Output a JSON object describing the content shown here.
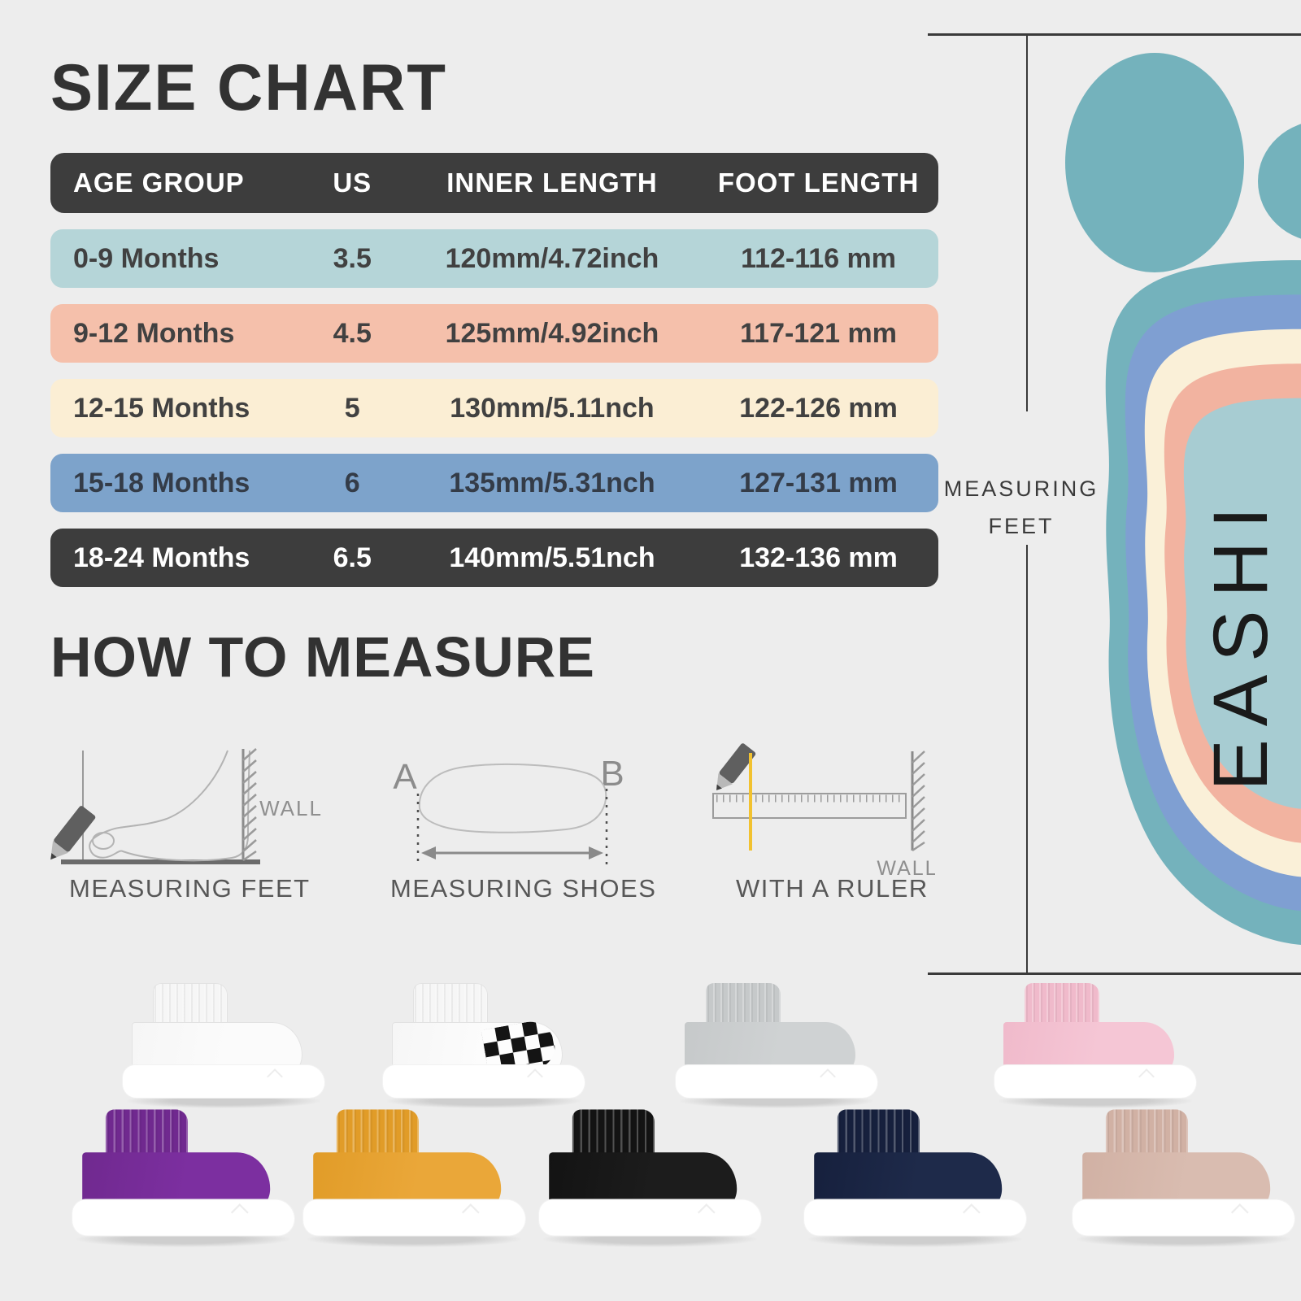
{
  "canvas": {
    "bg": "#ededed",
    "line_color": "#3a3a3a"
  },
  "size_chart": {
    "title": "SIZE CHART",
    "header": {
      "bg": "#3d3d3d",
      "fg": "#ffffff",
      "columns": [
        "AGE GROUP",
        "US",
        "INNER LENGTH",
        "FOOT LENGTH"
      ]
    },
    "rows": [
      {
        "age": "0-9 Months",
        "us": "3.5",
        "inner": "120mm/4.72inch",
        "foot": "112-116 mm",
        "bg": "#b5d5d8",
        "fg": "#414141"
      },
      {
        "age": "9-12 Months",
        "us": "4.5",
        "inner": "125mm/4.92inch",
        "foot": "117-121 mm",
        "bg": "#f5c0ab",
        "fg": "#414141"
      },
      {
        "age": "12-15 Months",
        "us": "5",
        "inner": "130mm/5.11nch",
        "foot": "122-126 mm",
        "bg": "#fbeed4",
        "fg": "#414141"
      },
      {
        "age": "15-18 Months",
        "us": "6",
        "inner": "135mm/5.31nch",
        "foot": "127-131 mm",
        "bg": "#7da3cb",
        "fg": "#343c48"
      },
      {
        "age": "18-24 Months",
        "us": "6.5",
        "inner": "140mm/5.51nch",
        "foot": "132-136 mm",
        "bg": "#3d3d3d",
        "fg": "#ffffff"
      }
    ]
  },
  "how_to_measure": {
    "title": "HOW TO MEASURE",
    "captions": [
      "MEASURING FEET",
      "MEASURING SHOES",
      "WITH A RULER"
    ],
    "wall_label": "WALL",
    "point_a": "A",
    "point_b": "B",
    "ruler_line_color": "#f2c230"
  },
  "side_panel": {
    "measuring_label_line1": "MEASURING",
    "measuring_label_line2": "FEET",
    "brand_vertical_text": "EASHI",
    "toe_color": "#74b2bc",
    "ring_colors": [
      "#74b2bc",
      "#7f9fd2",
      "#faf0d8",
      "#f2b3a0",
      "#a7ccd2"
    ]
  },
  "shoes": {
    "row1": [
      {
        "name": "white",
        "upper": "#fbfbfb",
        "cuff": "#f6f6f6",
        "sole": "#ffffff",
        "outline": "#e2e2e2",
        "checkered": false
      },
      {
        "name": "checkered-white",
        "upper": "#fcfcfc",
        "cuff": "#f6f6f6",
        "sole": "#ffffff",
        "outline": "#e2e2e2",
        "checkered": true,
        "checker_dark": "#141414",
        "checker_light": "#fdfdfd"
      },
      {
        "name": "grey",
        "upper": "#cfd2d3",
        "cuff": "#c6c9ca",
        "sole": "#ffffff",
        "checkered": false
      },
      {
        "name": "pink",
        "upper": "#f5c6d5",
        "cuff": "#f0bacb",
        "sole": "#ffffff",
        "checkered": false
      }
    ],
    "row2": [
      {
        "name": "purple",
        "upper": "#7c2fa0",
        "cuff": "#70298f",
        "sole": "#ffffff",
        "checkered": false
      },
      {
        "name": "yellow",
        "upper": "#eaa739",
        "cuff": "#e19c28",
        "sole": "#ffffff",
        "checkered": false
      },
      {
        "name": "black",
        "upper": "#1c1c1c",
        "cuff": "#131313",
        "sole": "#ffffff",
        "checkered": false
      },
      {
        "name": "navy",
        "upper": "#1e2a4a",
        "cuff": "#16203d",
        "sole": "#ffffff",
        "checkered": false
      },
      {
        "name": "beige",
        "upper": "#d9bcb0",
        "cuff": "#d1b1a4",
        "sole": "#ffffff",
        "checkered": false
      }
    ]
  }
}
